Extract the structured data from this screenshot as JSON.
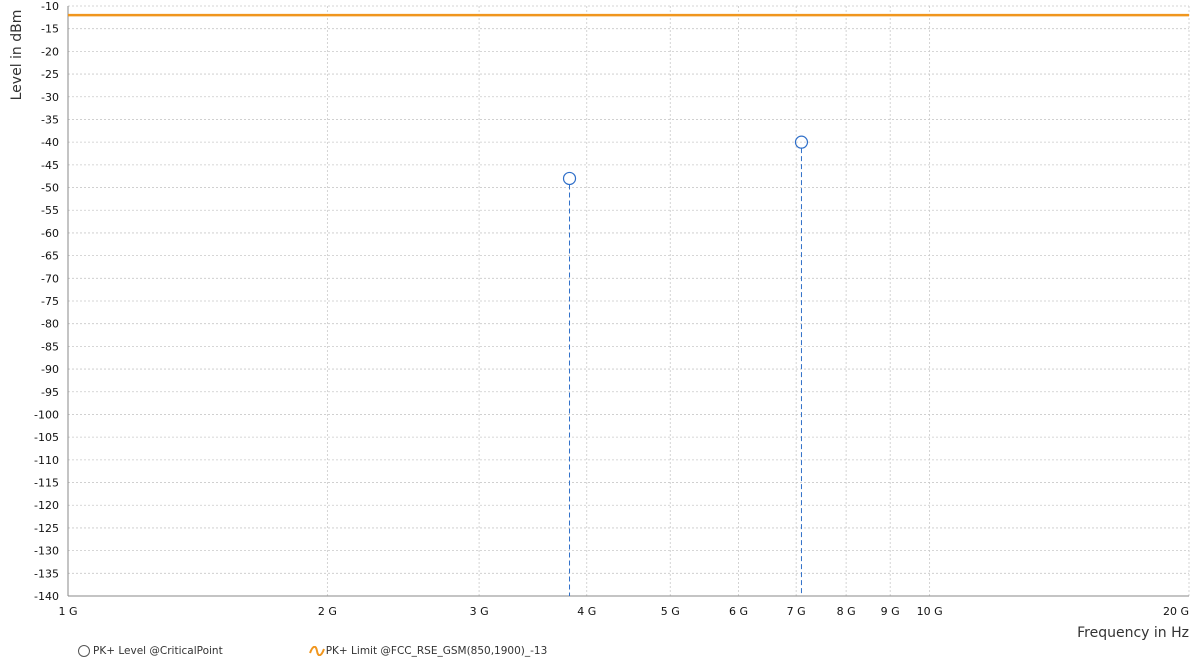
{
  "chart_data": {
    "type": "scatter",
    "xlabel": "Frequency in Hz",
    "ylabel": "Level in dBm",
    "xscale": "log",
    "xlim": [
      1000000000,
      20000000000
    ],
    "ylim": [
      -140,
      -10
    ],
    "x_ticks": [
      {
        "value": 1000000000,
        "label": "1 G"
      },
      {
        "value": 2000000000,
        "label": "2 G"
      },
      {
        "value": 3000000000,
        "label": "3 G"
      },
      {
        "value": 4000000000,
        "label": "4 G"
      },
      {
        "value": 5000000000,
        "label": "5 G"
      },
      {
        "value": 6000000000,
        "label": "6 G"
      },
      {
        "value": 7000000000,
        "label": "7 G"
      },
      {
        "value": 8000000000,
        "label": "8 G"
      },
      {
        "value": 9000000000,
        "label": "9 G"
      },
      {
        "value": 10000000000,
        "label": "10 G"
      },
      {
        "value": 20000000000,
        "label": "20 G"
      }
    ],
    "y_ticks": [
      -10,
      -15,
      -20,
      -25,
      -30,
      -35,
      -40,
      -45,
      -50,
      -55,
      -60,
      -65,
      -70,
      -75,
      -80,
      -85,
      -90,
      -95,
      -100,
      -105,
      -110,
      -115,
      -120,
      -125,
      -130,
      -135,
      -140
    ],
    "grid": true,
    "series": [
      {
        "name": "PK+ Level @CriticalPoint",
        "kind": "points-with-droplines",
        "color": "#2f6fc9",
        "points": [
          {
            "x": 3820000000,
            "y": -48
          },
          {
            "x": 7100000000,
            "y": -40
          }
        ]
      },
      {
        "name": "PK+ Limit @FCC_RSE_GSM(850,1900)_-13",
        "kind": "limit-line",
        "color": "#f0961e",
        "y": -12
      }
    ],
    "legend_position": "bottom-left"
  }
}
